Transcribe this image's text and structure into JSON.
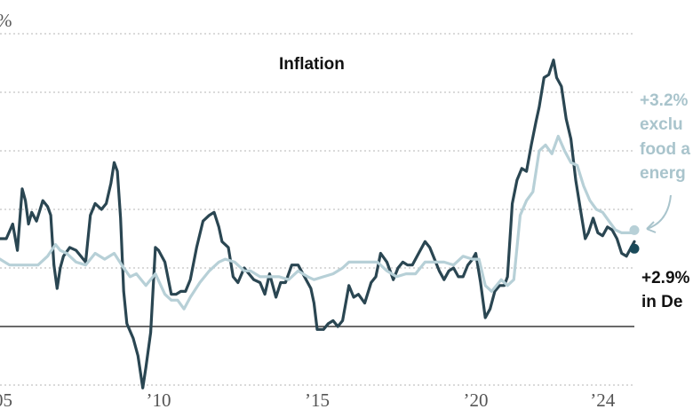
{
  "chart_data": {
    "type": "line",
    "title": "Inflation",
    "x_tick_labels": [
      {
        "x": 2005,
        "label": "’05"
      },
      {
        "x": 2010,
        "label": "’10"
      },
      {
        "x": 2015,
        "label": "’15"
      },
      {
        "x": 2020,
        "label": "’20"
      },
      {
        "x": 2024,
        "label": "’24"
      }
    ],
    "y_tick_labels": [
      {
        "y": 10,
        "label": "%"
      }
    ],
    "xlim": [
      2005.0,
      2025.4
    ],
    "ylim": [
      -2.5,
      10.5
    ],
    "y_gridlines": [
      -2,
      2,
      4,
      6,
      8,
      10
    ],
    "baseline": 0,
    "colors": {
      "headline": "#2a4652",
      "core": "#b7d0d7",
      "zero_line": "#111111",
      "grid": "#b4b4b4"
    },
    "series": [
      {
        "name": "headline",
        "points": [
          [
            2005.0,
            3.0
          ],
          [
            2005.2,
            3.0
          ],
          [
            2005.4,
            3.5
          ],
          [
            2005.55,
            2.6
          ],
          [
            2005.7,
            4.7
          ],
          [
            2005.8,
            4.3
          ],
          [
            2005.9,
            3.5
          ],
          [
            2006.0,
            3.9
          ],
          [
            2006.15,
            3.6
          ],
          [
            2006.35,
            4.3
          ],
          [
            2006.5,
            4.1
          ],
          [
            2006.6,
            3.8
          ],
          [
            2006.7,
            2.1
          ],
          [
            2006.8,
            1.3
          ],
          [
            2006.9,
            2.0
          ],
          [
            2007.0,
            2.4
          ],
          [
            2007.2,
            2.7
          ],
          [
            2007.4,
            2.6
          ],
          [
            2007.55,
            2.4
          ],
          [
            2007.7,
            2.2
          ],
          [
            2007.85,
            3.8
          ],
          [
            2008.0,
            4.2
          ],
          [
            2008.2,
            4.0
          ],
          [
            2008.35,
            4.2
          ],
          [
            2008.5,
            4.9
          ],
          [
            2008.6,
            5.6
          ],
          [
            2008.7,
            5.3
          ],
          [
            2008.8,
            3.7
          ],
          [
            2008.9,
            1.2
          ],
          [
            2009.0,
            0.1
          ],
          [
            2009.2,
            -0.4
          ],
          [
            2009.35,
            -1.0
          ],
          [
            2009.5,
            -2.1
          ],
          [
            2009.6,
            -1.4
          ],
          [
            2009.75,
            -0.2
          ],
          [
            2009.9,
            2.7
          ],
          [
            2010.0,
            2.6
          ],
          [
            2010.2,
            2.2
          ],
          [
            2010.4,
            1.1
          ],
          [
            2010.55,
            1.1
          ],
          [
            2010.7,
            1.2
          ],
          [
            2010.85,
            1.2
          ],
          [
            2011.0,
            1.6
          ],
          [
            2011.2,
            2.7
          ],
          [
            2011.4,
            3.6
          ],
          [
            2011.6,
            3.8
          ],
          [
            2011.75,
            3.9
          ],
          [
            2011.9,
            3.4
          ],
          [
            2012.0,
            2.9
          ],
          [
            2012.2,
            2.7
          ],
          [
            2012.35,
            1.7
          ],
          [
            2012.5,
            1.5
          ],
          [
            2012.7,
            2.0
          ],
          [
            2012.85,
            1.8
          ],
          [
            2013.0,
            1.6
          ],
          [
            2013.2,
            1.5
          ],
          [
            2013.35,
            1.1
          ],
          [
            2013.5,
            1.8
          ],
          [
            2013.7,
            1.0
          ],
          [
            2013.85,
            1.5
          ],
          [
            2014.0,
            1.5
          ],
          [
            2014.2,
            2.1
          ],
          [
            2014.4,
            2.1
          ],
          [
            2014.6,
            1.7
          ],
          [
            2014.8,
            1.3
          ],
          [
            2014.9,
            0.8
          ],
          [
            2015.0,
            -0.1
          ],
          [
            2015.2,
            -0.1
          ],
          [
            2015.35,
            0.1
          ],
          [
            2015.5,
            0.2
          ],
          [
            2015.65,
            0.0
          ],
          [
            2015.8,
            0.2
          ],
          [
            2016.0,
            1.4
          ],
          [
            2016.15,
            1.0
          ],
          [
            2016.3,
            1.1
          ],
          [
            2016.5,
            0.8
          ],
          [
            2016.7,
            1.5
          ],
          [
            2016.85,
            1.7
          ],
          [
            2017.0,
            2.5
          ],
          [
            2017.2,
            2.2
          ],
          [
            2017.4,
            1.6
          ],
          [
            2017.55,
            2.0
          ],
          [
            2017.7,
            2.2
          ],
          [
            2017.85,
            2.1
          ],
          [
            2018.0,
            2.1
          ],
          [
            2018.2,
            2.5
          ],
          [
            2018.4,
            2.9
          ],
          [
            2018.55,
            2.7
          ],
          [
            2018.7,
            2.3
          ],
          [
            2018.85,
            1.9
          ],
          [
            2019.0,
            1.6
          ],
          [
            2019.15,
            1.9
          ],
          [
            2019.3,
            2.0
          ],
          [
            2019.45,
            1.7
          ],
          [
            2019.6,
            1.7
          ],
          [
            2019.75,
            2.1
          ],
          [
            2019.9,
            2.3
          ],
          [
            2020.0,
            2.5
          ],
          [
            2020.15,
            1.5
          ],
          [
            2020.3,
            0.3
          ],
          [
            2020.45,
            0.6
          ],
          [
            2020.6,
            1.2
          ],
          [
            2020.75,
            1.4
          ],
          [
            2020.9,
            1.4
          ],
          [
            2021.0,
            1.7
          ],
          [
            2021.15,
            4.2
          ],
          [
            2021.3,
            5.0
          ],
          [
            2021.45,
            5.4
          ],
          [
            2021.6,
            5.3
          ],
          [
            2021.75,
            6.2
          ],
          [
            2021.9,
            7.0
          ],
          [
            2022.0,
            7.5
          ],
          [
            2022.15,
            8.5
          ],
          [
            2022.3,
            8.6
          ],
          [
            2022.45,
            9.1
          ],
          [
            2022.55,
            8.5
          ],
          [
            2022.7,
            8.2
          ],
          [
            2022.85,
            7.1
          ],
          [
            2023.0,
            6.4
          ],
          [
            2023.15,
            5.0
          ],
          [
            2023.3,
            4.0
          ],
          [
            2023.45,
            3.0
          ],
          [
            2023.55,
            3.2
          ],
          [
            2023.7,
            3.7
          ],
          [
            2023.85,
            3.2
          ],
          [
            2024.0,
            3.1
          ],
          [
            2024.15,
            3.4
          ],
          [
            2024.3,
            3.3
          ],
          [
            2024.45,
            3.0
          ],
          [
            2024.6,
            2.5
          ],
          [
            2024.75,
            2.4
          ],
          [
            2024.9,
            2.7
          ],
          [
            2025.0,
            2.9
          ]
        ]
      },
      {
        "name": "core",
        "points": [
          [
            2005.0,
            2.3
          ],
          [
            2005.3,
            2.1
          ],
          [
            2005.6,
            2.1
          ],
          [
            2005.9,
            2.1
          ],
          [
            2006.2,
            2.1
          ],
          [
            2006.5,
            2.4
          ],
          [
            2006.75,
            2.8
          ],
          [
            2006.9,
            2.6
          ],
          [
            2007.1,
            2.5
          ],
          [
            2007.4,
            2.2
          ],
          [
            2007.7,
            2.1
          ],
          [
            2008.0,
            2.5
          ],
          [
            2008.3,
            2.3
          ],
          [
            2008.6,
            2.5
          ],
          [
            2008.9,
            2.0
          ],
          [
            2009.1,
            1.7
          ],
          [
            2009.3,
            1.8
          ],
          [
            2009.6,
            1.4
          ],
          [
            2009.9,
            1.8
          ],
          [
            2010.2,
            1.1
          ],
          [
            2010.4,
            0.9
          ],
          [
            2010.6,
            0.9
          ],
          [
            2010.8,
            0.6
          ],
          [
            2011.0,
            1.0
          ],
          [
            2011.3,
            1.5
          ],
          [
            2011.6,
            1.9
          ],
          [
            2011.9,
            2.2
          ],
          [
            2012.1,
            2.3
          ],
          [
            2012.4,
            2.2
          ],
          [
            2012.7,
            1.9
          ],
          [
            2012.9,
            1.9
          ],
          [
            2013.2,
            1.7
          ],
          [
            2013.5,
            1.7
          ],
          [
            2013.8,
            1.7
          ],
          [
            2014.1,
            1.6
          ],
          [
            2014.4,
            1.9
          ],
          [
            2014.7,
            1.7
          ],
          [
            2014.9,
            1.6
          ],
          [
            2015.2,
            1.7
          ],
          [
            2015.5,
            1.8
          ],
          [
            2015.8,
            2.0
          ],
          [
            2016.0,
            2.2
          ],
          [
            2016.3,
            2.2
          ],
          [
            2016.6,
            2.2
          ],
          [
            2016.9,
            2.2
          ],
          [
            2017.2,
            1.9
          ],
          [
            2017.5,
            1.7
          ],
          [
            2017.8,
            1.8
          ],
          [
            2018.1,
            1.8
          ],
          [
            2018.4,
            2.2
          ],
          [
            2018.7,
            2.2
          ],
          [
            2019.0,
            2.2
          ],
          [
            2019.3,
            2.1
          ],
          [
            2019.6,
            2.4
          ],
          [
            2019.9,
            2.3
          ],
          [
            2020.1,
            2.3
          ],
          [
            2020.3,
            1.4
          ],
          [
            2020.5,
            1.2
          ],
          [
            2020.8,
            1.6
          ],
          [
            2021.0,
            1.4
          ],
          [
            2021.2,
            1.6
          ],
          [
            2021.4,
            3.8
          ],
          [
            2021.6,
            4.3
          ],
          [
            2021.8,
            4.6
          ],
          [
            2022.0,
            6.0
          ],
          [
            2022.2,
            6.2
          ],
          [
            2022.4,
            5.9
          ],
          [
            2022.6,
            6.5
          ],
          [
            2022.8,
            6.0
          ],
          [
            2023.0,
            5.6
          ],
          [
            2023.2,
            5.5
          ],
          [
            2023.4,
            4.8
          ],
          [
            2023.6,
            4.3
          ],
          [
            2023.8,
            4.0
          ],
          [
            2024.0,
            3.9
          ],
          [
            2024.2,
            3.6
          ],
          [
            2024.4,
            3.3
          ],
          [
            2024.6,
            3.2
          ],
          [
            2024.8,
            3.2
          ],
          [
            2025.0,
            3.2
          ]
        ]
      }
    ],
    "annotations": {
      "title_text": "Inflation",
      "core_lines": [
        "+3.2%",
        "exclu",
        "food a",
        "energ"
      ],
      "core_value": 3.2,
      "headline_lines": [
        "+2.9%",
        "in De"
      ],
      "headline_value": 2.9
    }
  }
}
